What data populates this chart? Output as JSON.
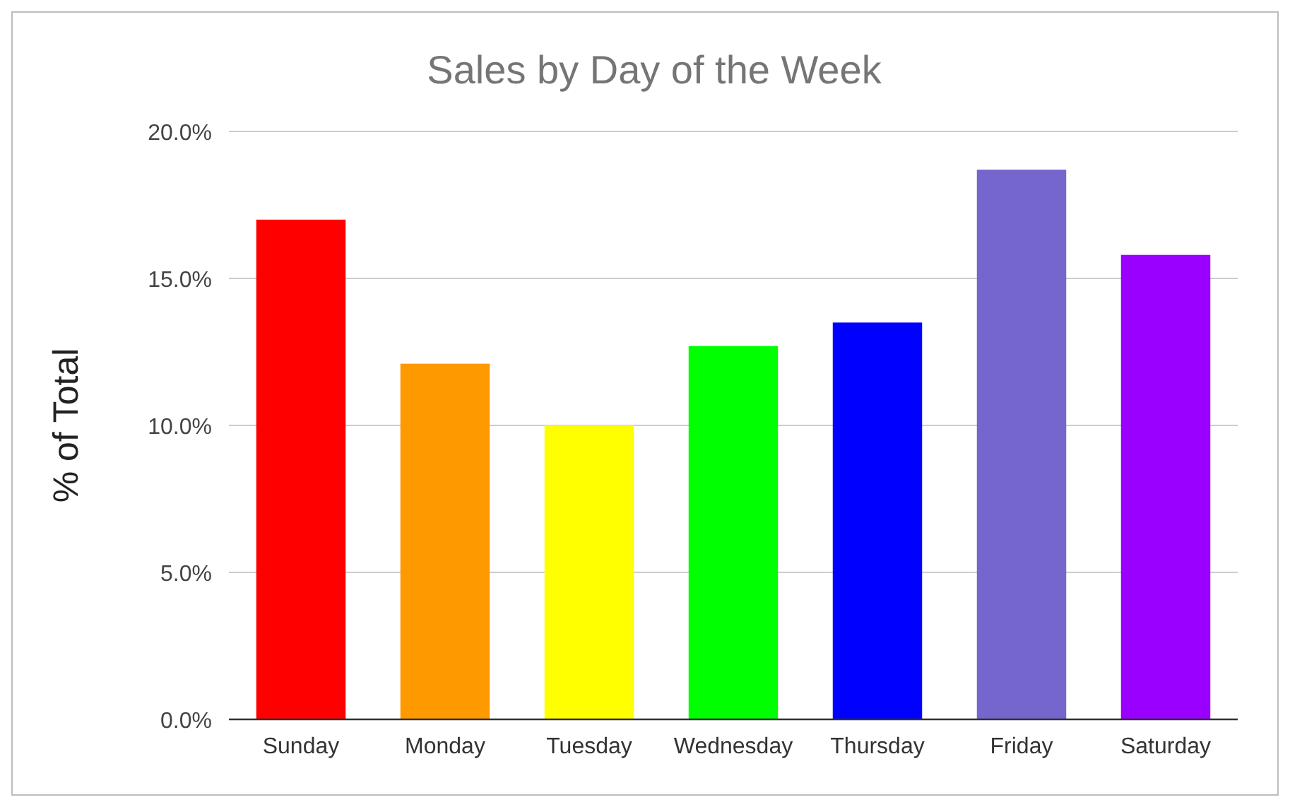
{
  "chart_data": {
    "type": "bar",
    "title": "Sales by Day of the Week",
    "ylabel": "% of Total",
    "categories": [
      "Sunday",
      "Monday",
      "Tuesday",
      "Wednesday",
      "Thursday",
      "Friday",
      "Saturday"
    ],
    "values": [
      17.0,
      12.1,
      10.0,
      12.7,
      13.5,
      18.7,
      15.8
    ],
    "colors": [
      "#ff0000",
      "#ff9900",
      "#ffff00",
      "#00ff00",
      "#0000ff",
      "#7466cc",
      "#9900ff"
    ],
    "ylim": [
      0,
      20
    ],
    "yticks": [
      {
        "value": 0,
        "label": "0.0%"
      },
      {
        "value": 5,
        "label": "5.0%"
      },
      {
        "value": 10,
        "label": "10.0%"
      },
      {
        "value": 15,
        "label": "15.0%"
      },
      {
        "value": 20,
        "label": "20.0%"
      }
    ],
    "grid": "y"
  }
}
